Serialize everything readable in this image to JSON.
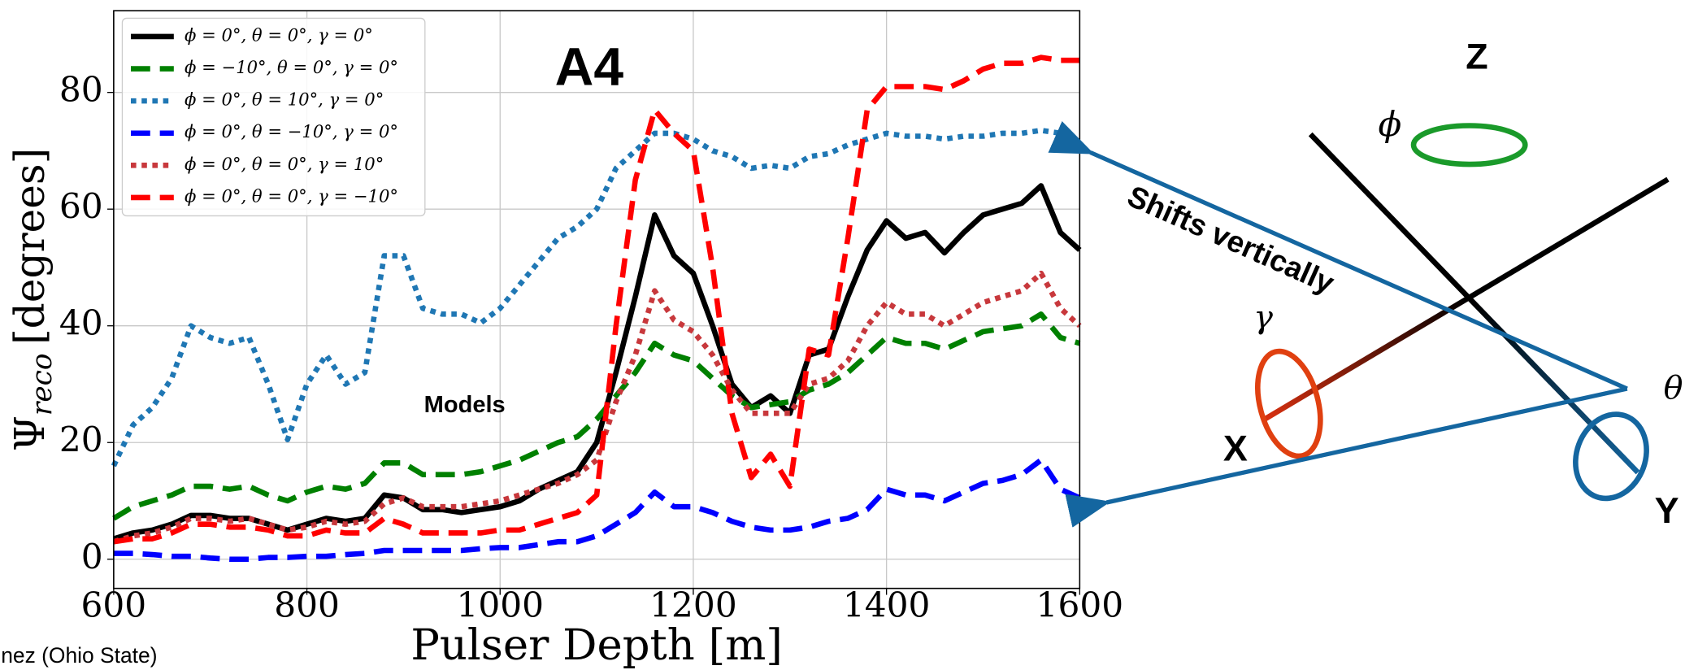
{
  "chart_data": {
    "type": "line",
    "title": "A4",
    "annotation": "Models",
    "x_label": "Pulser Depth [m]",
    "y_label": {
      "symbol": "Ψ",
      "subscript": "reco",
      "unit": "[degrees]"
    },
    "x": [
      600,
      620,
      640,
      660,
      680,
      700,
      720,
      740,
      760,
      780,
      800,
      820,
      840,
      860,
      880,
      900,
      920,
      940,
      960,
      980,
      1000,
      1020,
      1040,
      1060,
      1080,
      1100,
      1120,
      1140,
      1160,
      1180,
      1200,
      1220,
      1240,
      1260,
      1280,
      1300,
      1320,
      1340,
      1360,
      1380,
      1400,
      1420,
      1440,
      1460,
      1480,
      1500,
      1520,
      1540,
      1560,
      1580,
      1600
    ],
    "xlim": [
      600,
      1600
    ],
    "xticks": [
      600,
      800,
      1000,
      1200,
      1400,
      1600
    ],
    "ylim": [
      -5,
      94
    ],
    "yticks": [
      0,
      20,
      40,
      60,
      80
    ],
    "grid": true,
    "legend": "upper left",
    "series": [
      {
        "name": "ϕ = 0°, θ = 0°, γ = 0°",
        "color": "#000000",
        "dash": "solid",
        "values": [
          3.5,
          4.5,
          5,
          6,
          7.5,
          7.5,
          7,
          7,
          6,
          5,
          6,
          7,
          6.5,
          7,
          11,
          10.5,
          8.5,
          8.5,
          8,
          8.5,
          9,
          10,
          12,
          13.5,
          15,
          20,
          32,
          45,
          59,
          52,
          49,
          40,
          30,
          26,
          28,
          25,
          35,
          36,
          45,
          53,
          58,
          55,
          56,
          52.5,
          56,
          59,
          60,
          61,
          64,
          56,
          53
        ]
      },
      {
        "name": "ϕ = −10°, θ = 0°, γ = 0°",
        "color": "#008000",
        "dash": "dashed",
        "values": [
          7,
          9,
          10,
          11,
          12.5,
          12.5,
          12,
          12.5,
          11,
          10,
          11.5,
          12.5,
          12,
          13,
          16.5,
          16.5,
          14.5,
          14.5,
          14.5,
          15,
          16,
          17,
          18.5,
          20,
          21,
          24,
          28,
          32,
          37,
          35,
          34,
          31,
          28,
          26,
          26.5,
          27,
          29,
          30,
          32,
          35,
          38,
          37,
          37,
          36,
          37.5,
          39,
          39.5,
          40,
          42,
          38,
          37
        ]
      },
      {
        "name": "ϕ = 0°, θ = 10°, γ = 0°",
        "color": "#1f77b4",
        "dash": "dotted",
        "values": [
          16,
          23,
          26,
          31,
          40,
          38,
          37,
          38,
          30,
          20.5,
          30,
          35,
          30,
          32,
          52,
          52,
          43,
          42,
          42,
          40.5,
          43,
          47,
          51,
          55,
          57,
          60,
          67,
          70,
          73,
          73,
          72,
          70,
          69,
          67,
          67.5,
          67,
          69,
          69.5,
          71,
          72,
          73,
          72.5,
          72.5,
          72,
          72.5,
          72.5,
          73,
          73,
          73.5,
          73,
          71.5
        ]
      },
      {
        "name": "ϕ = 0°, θ = −10°, γ = 0°",
        "color": "#0000ff",
        "dash": "dashed",
        "values": [
          1,
          1,
          0.8,
          0.5,
          0.5,
          0.2,
          0,
          0,
          0.3,
          0.3,
          0.5,
          0.5,
          0.8,
          1,
          1.5,
          1.5,
          1.5,
          1.5,
          1.5,
          1.8,
          2,
          2,
          2.5,
          3,
          3,
          4,
          6,
          8,
          11.5,
          9,
          9,
          8,
          6.5,
          5.5,
          5,
          5,
          5.5,
          6.5,
          7,
          8.5,
          12,
          11,
          11,
          10,
          11.5,
          13,
          13.5,
          14.5,
          17,
          12,
          10.5
        ]
      },
      {
        "name": "ϕ = 0°, θ = 0°, γ = 10°",
        "color": "#c8383c",
        "dash": "dotted",
        "values": [
          3,
          4,
          4.5,
          5.5,
          7,
          7,
          6.5,
          7,
          6,
          5,
          5.5,
          6.5,
          6,
          6.5,
          9.5,
          10.5,
          9,
          9,
          9,
          9.5,
          10,
          11,
          12,
          13,
          14.5,
          17,
          27,
          35,
          46,
          41,
          39,
          35,
          29,
          25,
          25,
          25,
          30,
          31,
          34,
          40,
          44,
          42,
          42,
          40,
          42,
          44,
          45,
          46,
          49,
          43,
          40
        ]
      },
      {
        "name": "ϕ = 0°, θ = 0°, γ = −10°",
        "color": "#ff0000",
        "dash": "dashed",
        "values": [
          3,
          3.5,
          3.5,
          4.5,
          6,
          6,
          5.5,
          5.5,
          5,
          4,
          4,
          5,
          4.5,
          4.5,
          7,
          6,
          4.5,
          4.5,
          4.5,
          4.5,
          5,
          5,
          6,
          7,
          8,
          11,
          40,
          65,
          77,
          73,
          70,
          50,
          25,
          14,
          18,
          12.5,
          36,
          35,
          55,
          77,
          81,
          81,
          81,
          80.5,
          82,
          84,
          85,
          85,
          86,
          85.5,
          85.5
        ]
      }
    ]
  },
  "diagram": {
    "note": "Shifts vertically",
    "axes": {
      "z": "Z",
      "x": "X",
      "y": "Y"
    },
    "angles": {
      "phi": "ϕ",
      "gamma": "γ",
      "theta": "θ"
    },
    "credit": "nez (Ohio State)"
  }
}
